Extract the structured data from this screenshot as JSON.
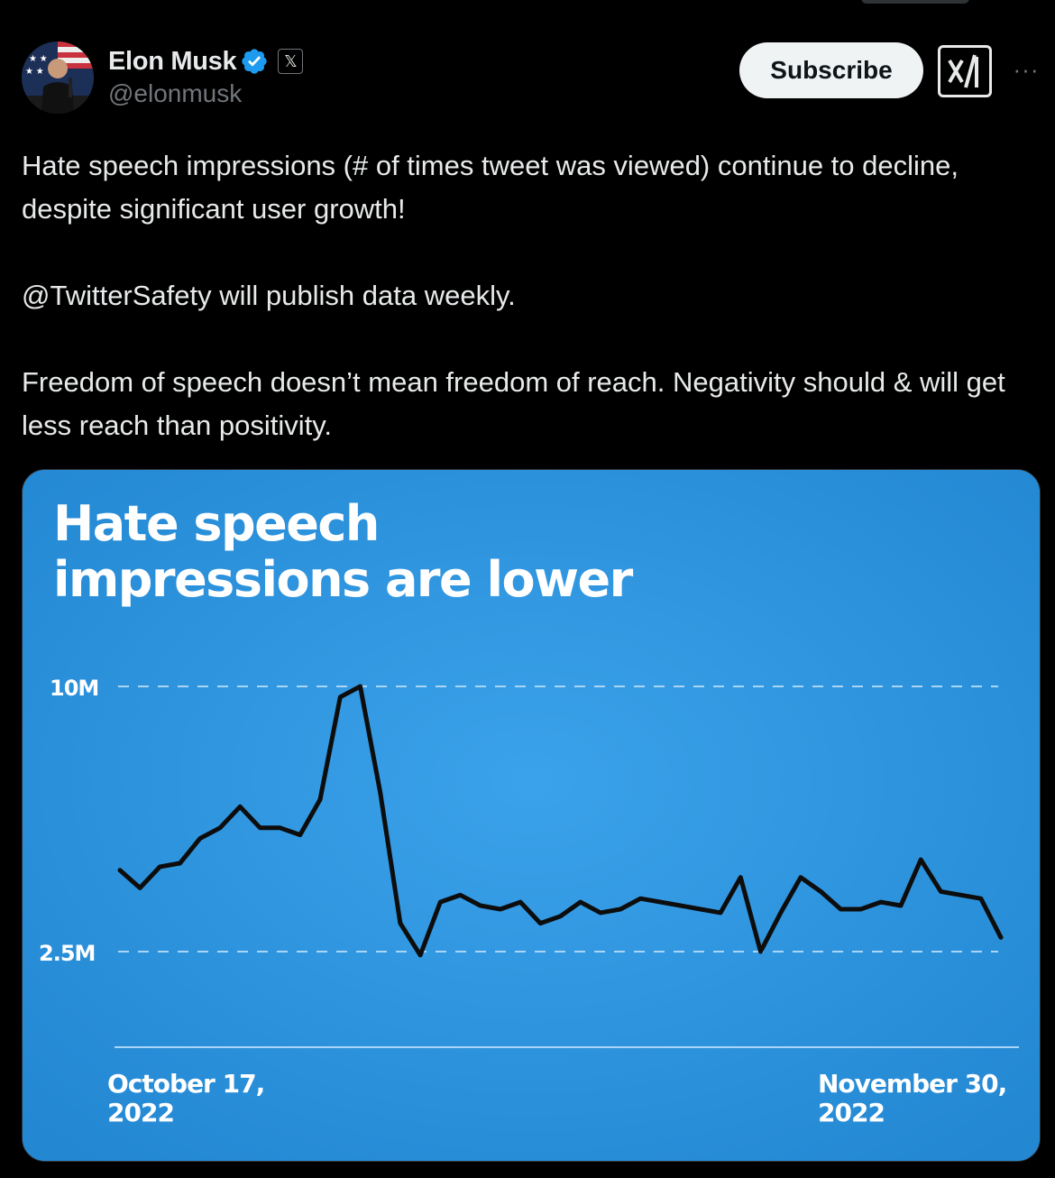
{
  "author": {
    "name": "Elon Musk",
    "handle": "@elonmusk",
    "affiliate_badge": "𝕏",
    "verified_icon": "verified-badge-icon",
    "avatar_icon": "avatar-photo"
  },
  "actions": {
    "subscribe_label": "Subscribe",
    "grok_icon": "grok-icon",
    "more_label": "···"
  },
  "tweet": {
    "paragraphs": [
      "Hate speech impressions (# of times tweet was viewed) continue to decline, despite significant user growth!",
      "@TwitterSafety will publish data weekly.",
      "Freedom of speech doesn’t mean freedom of reach. Negativity should & will get less reach than positivity."
    ]
  },
  "colors": {
    "background": "#000000",
    "chart_bg": "#2f96df",
    "verified_blue": "#1d9bf0"
  },
  "chart_data": {
    "type": "line",
    "title_lines": [
      "Hate speech",
      "impressions are lower"
    ],
    "ytick_labels": [
      "10M",
      "2.5M"
    ],
    "ytick_values": [
      10,
      2.5
    ],
    "xtick_labels": [
      [
        "October 17,",
        "2022"
      ],
      [
        "November 30,",
        "2022"
      ]
    ],
    "x_start_label_index": 0,
    "series": [
      {
        "values": [
          4.8,
          4.3,
          4.9,
          5.0,
          5.7,
          6.0,
          6.6,
          6.0,
          6.0,
          5.8,
          6.8,
          9.7,
          10.0,
          7.0,
          3.3,
          2.4,
          3.9,
          4.1,
          3.8,
          3.7,
          3.9,
          3.3,
          3.5,
          3.9,
          3.6,
          3.7,
          4.0,
          3.9,
          3.8,
          3.7,
          3.6,
          4.6,
          2.5,
          3.6,
          4.6,
          4.2,
          3.7,
          3.7,
          3.9,
          3.8,
          5.1,
          4.2,
          4.1,
          4.0,
          2.9
        ]
      }
    ],
    "grid": true
  }
}
